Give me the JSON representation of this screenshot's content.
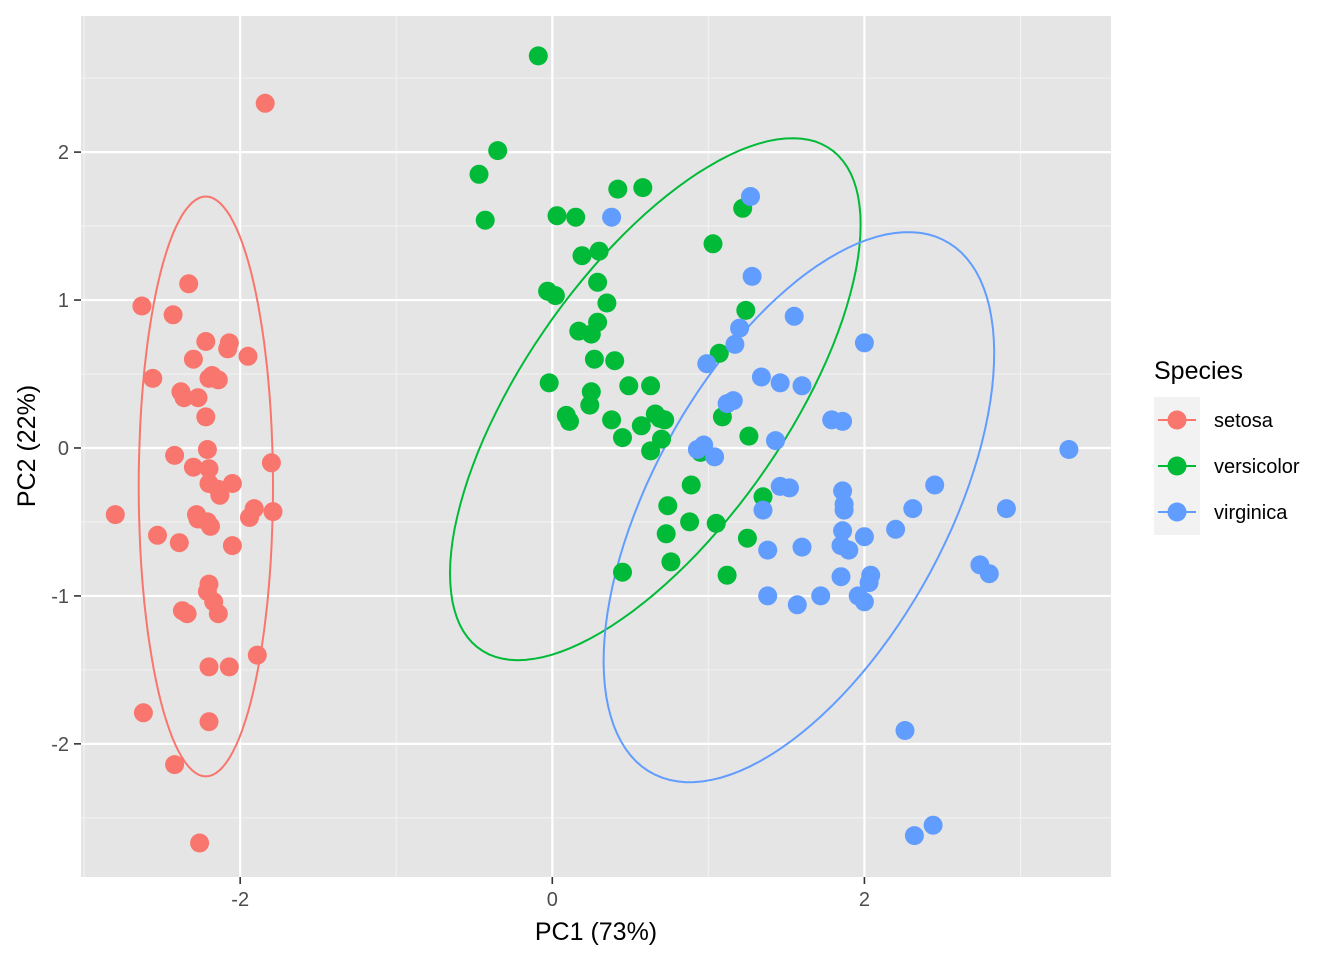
{
  "chart_data": {
    "type": "scatter",
    "title": "",
    "xlabel": "PC1 (73%)",
    "ylabel": "PC2 (22%)",
    "xlim": [
      -3.02,
      3.58
    ],
    "ylim": [
      -2.9,
      2.92
    ],
    "x_ticks": [
      -2,
      0,
      2
    ],
    "y_ticks": [
      -2,
      -1,
      0,
      1,
      2
    ],
    "x_tick_labels": [
      "-2",
      "0",
      "2"
    ],
    "y_tick_labels": [
      "-2",
      "-1",
      "0",
      "1",
      "2"
    ],
    "grid": true,
    "background": "#e5e5e5",
    "legend": {
      "title": "Species",
      "position": "right"
    },
    "series": [
      {
        "name": "setosa",
        "color": "#f8766d",
        "ellipse": {
          "cx": -2.22,
          "cy": -0.26,
          "rx": 0.43,
          "ry": 1.96,
          "angle_deg": 0
        },
        "points": [
          [
            -1.84,
            2.33
          ],
          [
            -2.33,
            1.11
          ],
          [
            -2.63,
            0.96
          ],
          [
            -2.43,
            0.9
          ],
          [
            -2.22,
            0.72
          ],
          [
            -2.07,
            0.71
          ],
          [
            -2.08,
            0.67
          ],
          [
            -1.95,
            0.62
          ],
          [
            -2.3,
            0.6
          ],
          [
            -2.56,
            0.47
          ],
          [
            -2.18,
            0.49
          ],
          [
            -2.2,
            0.47
          ],
          [
            -2.14,
            0.46
          ],
          [
            -2.38,
            0.38
          ],
          [
            -2.36,
            0.34
          ],
          [
            -2.27,
            0.34
          ],
          [
            -2.22,
            0.21
          ],
          [
            -2.21,
            -0.01
          ],
          [
            -2.42,
            -0.05
          ],
          [
            -2.3,
            -0.13
          ],
          [
            -2.2,
            -0.14
          ],
          [
            -2.2,
            -0.24
          ],
          [
            -2.14,
            -0.28
          ],
          [
            -2.13,
            -0.32
          ],
          [
            -2.05,
            -0.24
          ],
          [
            -1.8,
            -0.1
          ],
          [
            -2.8,
            -0.45
          ],
          [
            -2.28,
            -0.45
          ],
          [
            -2.27,
            -0.48
          ],
          [
            -2.21,
            -0.5
          ],
          [
            -2.19,
            -0.53
          ],
          [
            -1.91,
            -0.41
          ],
          [
            -1.94,
            -0.47
          ],
          [
            -1.79,
            -0.43
          ],
          [
            -2.53,
            -0.59
          ],
          [
            -2.39,
            -0.64
          ],
          [
            -2.05,
            -0.66
          ],
          [
            -2.2,
            -0.92
          ],
          [
            -2.21,
            -0.97
          ],
          [
            -2.17,
            -1.04
          ],
          [
            -2.37,
            -1.1
          ],
          [
            -2.34,
            -1.12
          ],
          [
            -2.14,
            -1.12
          ],
          [
            -1.89,
            -1.4
          ],
          [
            -2.2,
            -1.48
          ],
          [
            -2.07,
            -1.48
          ],
          [
            -2.62,
            -1.79
          ],
          [
            -2.2,
            -1.85
          ],
          [
            -2.42,
            -2.14
          ],
          [
            -2.26,
            -2.67
          ]
        ]
      },
      {
        "name": "versicolor",
        "color": "#00ba38",
        "ellipse": {
          "cx": 0.66,
          "cy": 0.33,
          "rx": 0.85,
          "ry": 2.03,
          "angle_deg": 33
        },
        "points": [
          [
            -0.09,
            2.65
          ],
          [
            -0.35,
            2.01
          ],
          [
            -0.47,
            1.85
          ],
          [
            -0.43,
            1.54
          ],
          [
            0.42,
            1.75
          ],
          [
            0.58,
            1.76
          ],
          [
            0.03,
            1.57
          ],
          [
            0.15,
            1.56
          ],
          [
            0.19,
            1.3
          ],
          [
            0.3,
            1.33
          ],
          [
            0.29,
            1.12
          ],
          [
            -0.03,
            1.06
          ],
          [
            0.02,
            1.03
          ],
          [
            0.35,
            0.98
          ],
          [
            0.17,
            0.79
          ],
          [
            0.25,
            0.77
          ],
          [
            0.29,
            0.85
          ],
          [
            0.4,
            0.59
          ],
          [
            0.27,
            0.6
          ],
          [
            -0.02,
            0.44
          ],
          [
            0.49,
            0.42
          ],
          [
            0.63,
            0.42
          ],
          [
            0.25,
            0.38
          ],
          [
            0.24,
            0.29
          ],
          [
            0.09,
            0.22
          ],
          [
            0.11,
            0.18
          ],
          [
            0.38,
            0.19
          ],
          [
            0.57,
            0.15
          ],
          [
            0.66,
            0.23
          ],
          [
            0.69,
            0.2
          ],
          [
            0.72,
            0.19
          ],
          [
            0.7,
            0.06
          ],
          [
            0.45,
            0.07
          ],
          [
            0.63,
            -0.02
          ],
          [
            1.03,
            1.38
          ],
          [
            1.22,
            1.62
          ],
          [
            1.24,
            0.93
          ],
          [
            1.07,
            0.64
          ],
          [
            1.09,
            0.21
          ],
          [
            1.26,
            0.08
          ],
          [
            0.95,
            -0.03
          ],
          [
            1.35,
            -0.33
          ],
          [
            0.89,
            -0.25
          ],
          [
            0.74,
            -0.39
          ],
          [
            0.88,
            -0.5
          ],
          [
            1.05,
            -0.51
          ],
          [
            0.73,
            -0.58
          ],
          [
            1.25,
            -0.61
          ],
          [
            0.76,
            -0.77
          ],
          [
            1.12,
            -0.86
          ],
          [
            0.45,
            -0.84
          ]
        ]
      },
      {
        "name": "virginica",
        "color": "#619cff",
        "ellipse": {
          "cx": 1.58,
          "cy": -0.4,
          "rx": 0.95,
          "ry": 2.03,
          "angle_deg": 27
        },
        "points": [
          [
            1.27,
            1.7
          ],
          [
            0.38,
            1.56
          ],
          [
            1.28,
            1.16
          ],
          [
            1.55,
            0.89
          ],
          [
            1.2,
            0.81
          ],
          [
            1.17,
            0.7
          ],
          [
            2.0,
            0.71
          ],
          [
            0.99,
            0.57
          ],
          [
            1.34,
            0.48
          ],
          [
            1.46,
            0.44
          ],
          [
            1.6,
            0.42
          ],
          [
            1.79,
            0.19
          ],
          [
            1.86,
            0.18
          ],
          [
            1.16,
            0.32
          ],
          [
            1.12,
            0.3
          ],
          [
            1.43,
            0.05
          ],
          [
            0.93,
            -0.01
          ],
          [
            0.97,
            0.02
          ],
          [
            1.04,
            -0.06
          ],
          [
            3.31,
            -0.01
          ],
          [
            1.46,
            -0.26
          ],
          [
            1.52,
            -0.27
          ],
          [
            1.86,
            -0.29
          ],
          [
            1.87,
            -0.38
          ],
          [
            1.87,
            -0.42
          ],
          [
            2.45,
            -0.25
          ],
          [
            2.31,
            -0.41
          ],
          [
            2.91,
            -0.41
          ],
          [
            1.35,
            -0.42
          ],
          [
            1.86,
            -0.56
          ],
          [
            2.2,
            -0.55
          ],
          [
            2.0,
            -0.6
          ],
          [
            1.85,
            -0.66
          ],
          [
            1.9,
            -0.69
          ],
          [
            1.38,
            -0.69
          ],
          [
            1.6,
            -0.67
          ],
          [
            2.74,
            -0.79
          ],
          [
            2.8,
            -0.85
          ],
          [
            1.85,
            -0.87
          ],
          [
            2.04,
            -0.86
          ],
          [
            2.03,
            -0.91
          ],
          [
            1.96,
            -1.0
          ],
          [
            2.0,
            -1.04
          ],
          [
            1.72,
            -1.0
          ],
          [
            1.38,
            -1.0
          ],
          [
            1.57,
            -1.06
          ],
          [
            2.26,
            -1.91
          ],
          [
            2.32,
            -2.62
          ],
          [
            2.44,
            -2.55
          ]
        ]
      }
    ]
  }
}
